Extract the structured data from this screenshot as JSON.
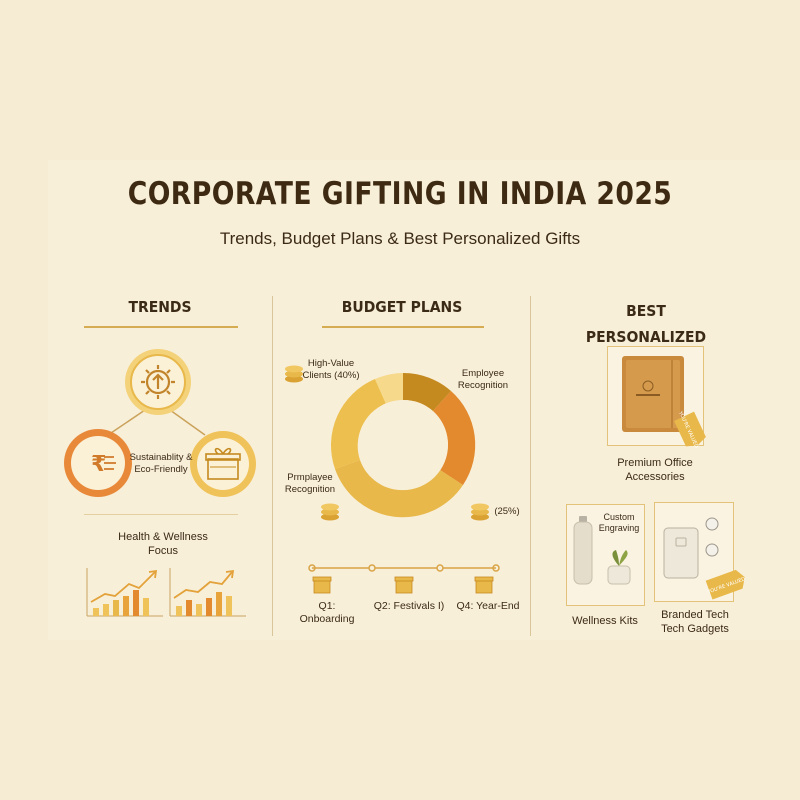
{
  "header": {
    "title": "CORPORATE GIFTING IN INDIA 2025",
    "subtitle": "Trends, Budget Plans & Best Personalized Gifts"
  },
  "trends": {
    "heading": "TRENDS",
    "sustainability_label": "Sustainablity & Eco-Friendly",
    "health_label": "Health & Wellness Focus"
  },
  "budget": {
    "heading": "BUDGET PLANS",
    "high_value_label": "High-Value Clients (40%)",
    "employee_label": "Employee Recognition",
    "prmployee_label": "Prmplayee Recognition",
    "pct_25_label": "(25%)",
    "timeline": [
      "Q1: Onboarding",
      "Q2: Festivals I)",
      "Q4: Year-End"
    ]
  },
  "gifts": {
    "heading": "BEST PERSONALIZED GIFTS",
    "office_label": "Premium Office Accessories",
    "engraving_label": "Custom Engraving",
    "wellness_label": "Wellness Kits",
    "tech_label": "Branded Tech Tech Gadgets",
    "tag_text": "YOU'RE VALUED"
  },
  "colors": {
    "gold": "#e8b84a",
    "dark_gold": "#c58a1f",
    "orange": "#e3892e",
    "brown": "#3b2a16",
    "cream": "#f5ecd3"
  }
}
